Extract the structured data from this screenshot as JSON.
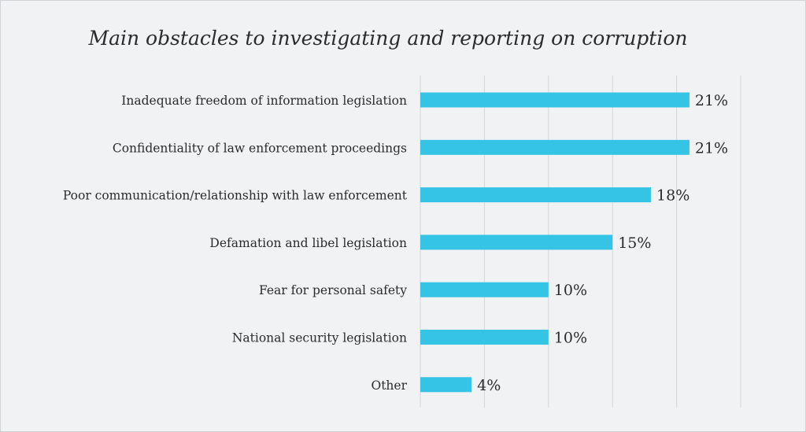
{
  "chart_data": {
    "type": "bar",
    "orientation": "horizontal",
    "title": "Main obstacles to investigating and reporting on corruption",
    "categories": [
      "Inadequate freedom of information legislation",
      "Confidentiality of law enforcement proceedings",
      "Poor communication/relationship  with law enforcement",
      "Defamation and libel legislation",
      "Fear for personal safety",
      "National security legislation",
      "Other"
    ],
    "values": [
      21,
      21,
      18,
      15,
      10,
      10,
      4
    ],
    "value_labels": [
      "21%",
      "21%",
      "18%",
      "15%",
      "10%",
      "10%",
      "4%"
    ],
    "unit": "%",
    "xlim": [
      0,
      25
    ],
    "gridlines": [
      0,
      5,
      10,
      15,
      20,
      25
    ],
    "grid": true,
    "legend": "none",
    "bar_color": "#35c3e6"
  }
}
